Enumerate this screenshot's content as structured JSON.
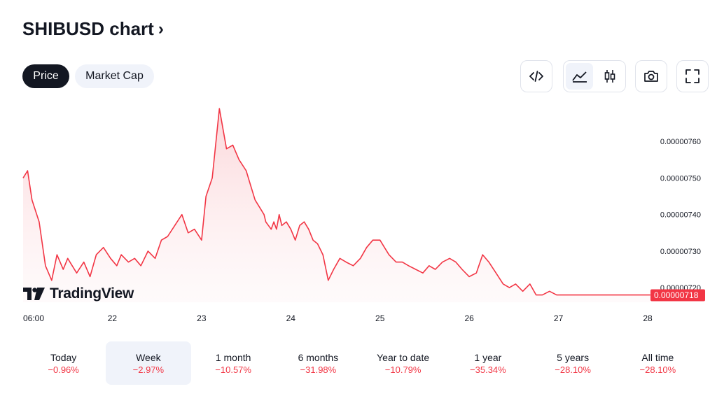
{
  "header": {
    "title": "SHIBUSD chart",
    "title_chevron": "›"
  },
  "toggle": {
    "price_label": "Price",
    "market_cap_label": "Market Cap"
  },
  "toolbar": {
    "embed_icon": "code-icon",
    "line_icon": "line-chart-icon",
    "candle_icon": "candlestick-icon",
    "snapshot_icon": "camera-icon",
    "fullscreen_icon": "fullscreen-icon"
  },
  "brand": {
    "name": "TradingView"
  },
  "periods": [
    {
      "label": "Today",
      "change": "−0.96%"
    },
    {
      "label": "Week",
      "change": "−2.97%",
      "selected": true
    },
    {
      "label": "1 month",
      "change": "−10.57%"
    },
    {
      "label": "6 months",
      "change": "−31.98%"
    },
    {
      "label": "Year to date",
      "change": "−10.79%"
    },
    {
      "label": "1 year",
      "change": "−35.34%"
    },
    {
      "label": "5 years",
      "change": "−28.10%"
    },
    {
      "label": "All time",
      "change": "−28.10%"
    }
  ],
  "colors": {
    "line": "#f23645",
    "fill_top": "#fbd3d6",
    "badge": "#f23645",
    "text": "#131722",
    "muted": "#f0f3fa"
  },
  "chart_data": {
    "type": "area",
    "title": "",
    "xlabel": "",
    "ylabel": "",
    "x_ticks": [
      "06:00",
      "22",
      "23",
      "24",
      "25",
      "26",
      "27",
      "28"
    ],
    "x_tick_values": [
      0,
      1,
      2,
      3,
      4,
      5,
      6,
      7
    ],
    "y_ticks": [
      "0.00000720",
      "0.00000730",
      "0.00000740",
      "0.00000750",
      "0.00000760"
    ],
    "y_tick_values": [
      7.2,
      7.3,
      7.4,
      7.5,
      7.6
    ],
    "ylim": [
      7.16,
      7.7
    ],
    "y_scale_note": "values in units of 1e-6 USD",
    "last_value_label": "0.00000718",
    "last_value": 7.18,
    "grid": false,
    "series": [
      {
        "x": [
          0.0,
          0.05,
          0.1,
          0.18,
          0.25,
          0.32,
          0.38,
          0.45,
          0.5,
          0.55,
          0.6,
          0.68,
          0.75,
          0.82,
          0.9,
          0.98,
          1.05,
          1.1,
          1.18,
          1.25,
          1.32,
          1.4,
          1.48,
          1.55,
          1.62,
          1.7,
          1.78,
          1.85,
          1.92,
          2.0,
          2.05,
          2.12,
          2.2,
          2.28,
          2.35,
          2.42,
          2.5,
          2.55,
          2.6,
          2.65,
          2.7,
          2.72,
          2.75,
          2.78,
          2.81,
          2.84,
          2.87,
          2.9,
          2.95,
          3.0,
          3.05,
          3.1,
          3.15,
          3.2,
          3.25,
          3.3,
          3.36,
          3.42,
          3.48,
          3.55,
          3.62,
          3.7,
          3.78,
          3.85,
          3.92,
          4.0,
          4.05,
          4.1,
          4.18,
          4.25,
          4.32,
          4.4,
          4.48,
          4.55,
          4.62,
          4.7,
          4.78,
          4.85,
          4.92,
          5.0,
          5.08,
          5.15,
          5.22,
          5.3,
          5.38,
          5.45,
          5.52,
          5.6,
          5.68,
          5.75,
          5.82,
          5.9,
          5.98,
          6.05,
          6.12,
          6.2,
          6.28,
          6.35,
          6.42,
          6.5,
          6.58,
          6.65,
          6.72,
          6.8,
          6.85,
          6.88,
          6.92,
          6.96,
          7.0,
          7.03
        ],
        "y": [
          7.5,
          7.52,
          7.44,
          7.38,
          7.26,
          7.22,
          7.29,
          7.25,
          7.28,
          7.26,
          7.24,
          7.27,
          7.23,
          7.29,
          7.31,
          7.28,
          7.26,
          7.29,
          7.27,
          7.28,
          7.26,
          7.3,
          7.28,
          7.33,
          7.34,
          7.37,
          7.4,
          7.35,
          7.36,
          7.33,
          7.45,
          7.5,
          7.69,
          7.58,
          7.59,
          7.55,
          7.52,
          7.48,
          7.44,
          7.42,
          7.4,
          7.38,
          7.37,
          7.36,
          7.38,
          7.36,
          7.4,
          7.37,
          7.38,
          7.36,
          7.33,
          7.37,
          7.38,
          7.36,
          7.33,
          7.32,
          7.29,
          7.22,
          7.25,
          7.28,
          7.27,
          7.26,
          7.28,
          7.31,
          7.33,
          7.33,
          7.31,
          7.29,
          7.27,
          7.27,
          7.26,
          7.25,
          7.24,
          7.26,
          7.25,
          7.27,
          7.28,
          7.27,
          7.25,
          7.23,
          7.24,
          7.29,
          7.27,
          7.24,
          7.21,
          7.2,
          7.21,
          7.19,
          7.21,
          7.18,
          7.18,
          7.19,
          7.18,
          7.18,
          7.18,
          7.18,
          7.18,
          7.18,
          7.18,
          7.18,
          7.18,
          7.18,
          7.18,
          7.18,
          7.18,
          7.18,
          7.18,
          7.18,
          7.18,
          7.18
        ]
      }
    ]
  }
}
